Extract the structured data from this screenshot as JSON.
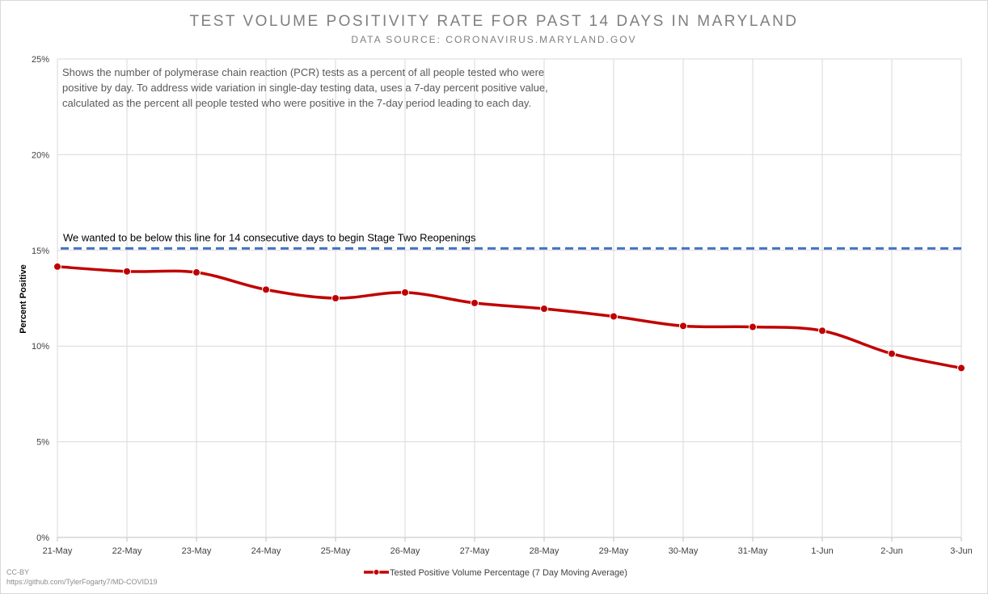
{
  "chart_data": {
    "type": "line",
    "title": "TEST VOLUME POSITIVITY RATE FOR PAST 14 DAYS IN MARYLAND",
    "subtitle": "DATA SOURCE: CORONAVIRUS.MARYLAND.GOV",
    "ylabel": "Percent Positive",
    "xlabel": "",
    "ylim": [
      0,
      25
    ],
    "yticks": [
      0,
      5,
      10,
      15,
      20,
      25
    ],
    "ytick_labels": [
      "0%",
      "5%",
      "10%",
      "15%",
      "20%",
      "25%"
    ],
    "grid": true,
    "categories": [
      "21-May",
      "22-May",
      "23-May",
      "24-May",
      "25-May",
      "26-May",
      "27-May",
      "28-May",
      "29-May",
      "30-May",
      "31-May",
      "1-Jun",
      "2-Jun",
      "3-Jun"
    ],
    "series": [
      {
        "name": "Tested Positive Volume Percentage (7 Day Moving Average)",
        "color": "#c00000",
        "values": [
          14.15,
          13.9,
          13.85,
          12.95,
          12.5,
          12.8,
          12.25,
          11.95,
          11.55,
          11.05,
          11.0,
          10.8,
          9.6,
          8.85
        ]
      }
    ],
    "reference_line": {
      "value": 15.1,
      "color": "#4472c4",
      "label": "We wanted to be below this line for 14 consecutive days to begin Stage Two Reopenings"
    },
    "annotation": "Shows the number of polymerase chain reaction (PCR) tests as a percent of all people tested who were positive by day. To address wide variation in single-day testing data, uses a 7-day percent positive value, calculated as the percent all people tested who were positive in the 7-day period leading to each day.",
    "legend_position": "bottom"
  },
  "footer": {
    "license": "CC-BY",
    "source_url": "https://github.com/TylerFogarty7/MD-COVID19"
  }
}
